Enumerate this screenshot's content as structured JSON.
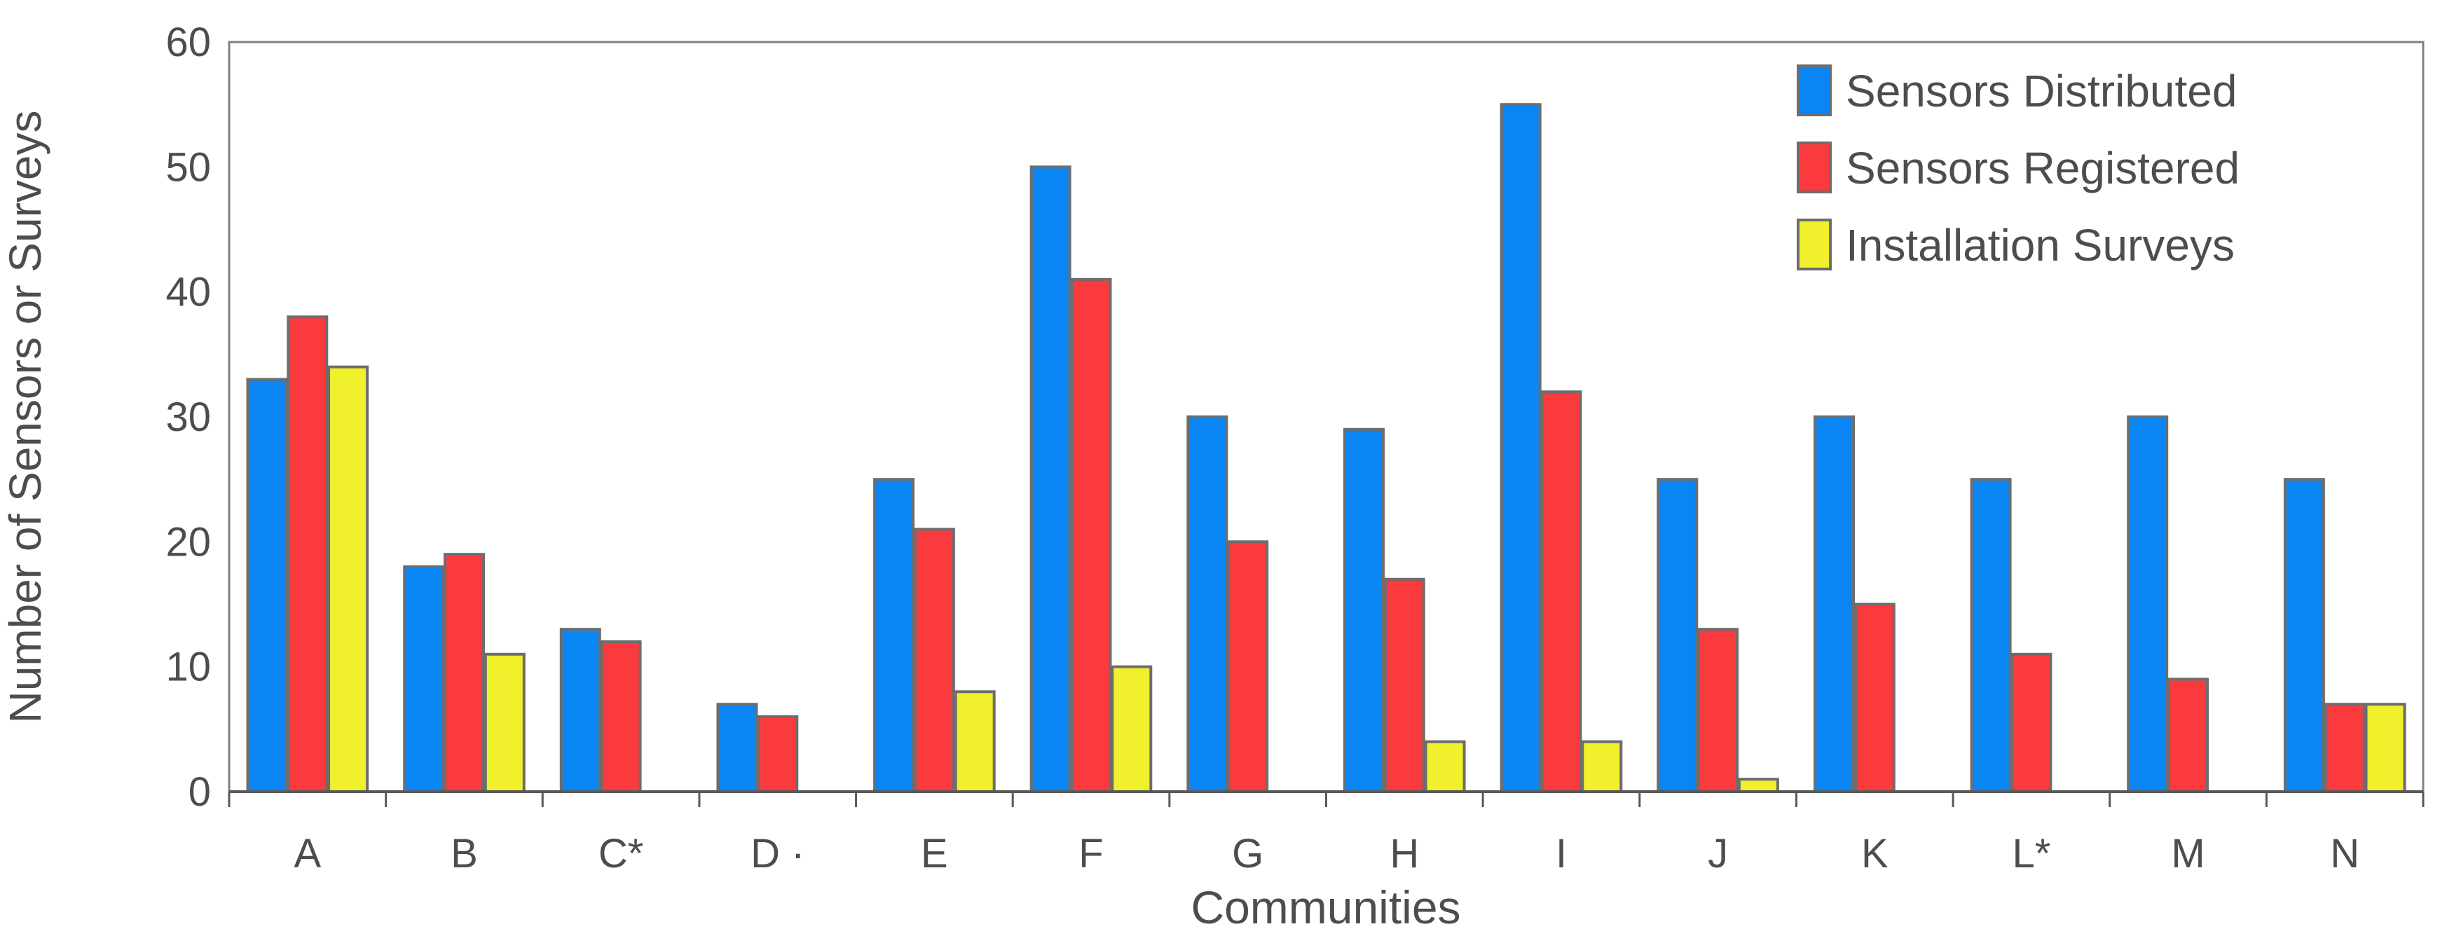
{
  "chart_data": {
    "type": "bar",
    "title": "",
    "xlabel": "Communities",
    "ylabel": "Number of Sensors or Surveys",
    "categories": [
      "A",
      "B",
      "C*",
      "D ·",
      "E",
      "F",
      "G",
      "H",
      "I",
      "J",
      "K",
      "L*",
      "M",
      "N"
    ],
    "series": [
      {
        "name": "Sensors Distributed",
        "color": "#0a86f4",
        "values": [
          33,
          18,
          13,
          7,
          25,
          50,
          30,
          29,
          55,
          25,
          30,
          25,
          30,
          25
        ]
      },
      {
        "name": "Sensors Registered",
        "color": "#fb3a3e",
        "values": [
          38,
          19,
          12,
          6,
          21,
          41,
          20,
          17,
          32,
          13,
          15,
          11,
          9,
          7
        ]
      },
      {
        "name": "Installation Surveys",
        "color": "#f0f02c",
        "values": [
          34,
          11,
          0,
          0,
          8,
          10,
          0,
          4,
          4,
          1,
          0,
          0,
          0,
          7
        ]
      }
    ],
    "ylim": [
      0,
      60
    ],
    "yticks": [
      0,
      10,
      20,
      30,
      40,
      50,
      60
    ],
    "grid": false,
    "legend_position": "top-right",
    "bar_outline_color": "#6d6d6d",
    "plot_border_color": "#808080",
    "axis_color": "#595959",
    "text_color": "#4d4d4d"
  }
}
